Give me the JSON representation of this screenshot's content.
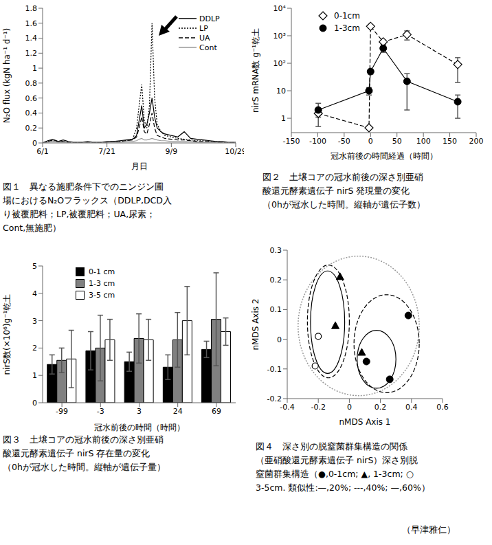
{
  "chart_data": [
    {
      "type": "line",
      "title": [
        "図１　異なる施肥条件下でのニンジン圃",
        "場におけるN₂Oフラックス（DDLP,DCD入",
        "り被覆肥料；LP,被覆肥料；UA,尿素；",
        "Cont,無施肥）"
      ],
      "xlabel": "月日",
      "ylabel": "N₂O flux (kgN ha⁻¹ d⁻¹)",
      "x": [
        0,
        4,
        8,
        12,
        16,
        20,
        25,
        30,
        35,
        40,
        45,
        50,
        55,
        60,
        65,
        70,
        73,
        75,
        77,
        79,
        81,
        83,
        85,
        87,
        89,
        92,
        95,
        100,
        105,
        110,
        115,
        120,
        125,
        130,
        135,
        140,
        145,
        150
      ],
      "xlim": [
        0,
        150
      ],
      "xticks": [
        {
          "value": 0,
          "label": "6/1"
        },
        {
          "value": 50,
          "label": "7/21"
        },
        {
          "value": 100,
          "label": "9/9"
        },
        {
          "value": 150,
          "label": "10/29"
        }
      ],
      "ylim": [
        0,
        1.8
      ],
      "yticks": [
        0,
        0.2,
        0.4,
        0.6,
        0.8,
        1,
        1.2,
        1.4,
        1.6,
        1.8
      ],
      "legend": "upper right",
      "series": [
        {
          "name": "DDLP",
          "color": "#000000",
          "line_style": "solid",
          "values": [
            0,
            0.03,
            0.05,
            0.02,
            0.04,
            0.02,
            0.01,
            0.01,
            0.02,
            0.01,
            0.01,
            0.02,
            0.02,
            0.03,
            0.04,
            0.05,
            0.1,
            0.3,
            0.5,
            0.2,
            0.25,
            0.4,
            0.6,
            0.35,
            0.2,
            0.15,
            0.12,
            0.1,
            0.08,
            0.15,
            0.06,
            0.05,
            0.04,
            0.03,
            0.02,
            0.02,
            0.01,
            0.01
          ]
        },
        {
          "name": "LP",
          "color": "#000000",
          "line_style": "dotted",
          "values": [
            0,
            0.02,
            0.03,
            0.02,
            0.02,
            0.01,
            0.01,
            0.01,
            0.01,
            0.01,
            0.01,
            0.01,
            0.02,
            0.02,
            0.03,
            0.05,
            0.2,
            0.5,
            0.78,
            0.3,
            0.2,
            0.5,
            1.6,
            0.6,
            0.25,
            0.15,
            0.1,
            0.08,
            0.06,
            0.05,
            0.04,
            0.03,
            0.03,
            0.02,
            0.02,
            0.01,
            0.01,
            0.01
          ]
        },
        {
          "name": "UA",
          "color": "#000000",
          "line_style": "dashed",
          "values": [
            0,
            0.02,
            0.04,
            0.02,
            0.02,
            0.01,
            0.01,
            0.01,
            0.01,
            0.01,
            0.01,
            0.01,
            0.02,
            0.02,
            0.03,
            0.04,
            0.08,
            0.2,
            0.35,
            0.15,
            0.12,
            0.25,
            0.4,
            0.2,
            0.1,
            0.08,
            0.06,
            0.05,
            0.04,
            0.04,
            0.03,
            0.02,
            0.02,
            0.02,
            0.01,
            0.01,
            0.01,
            0.01
          ]
        },
        {
          "name": "Cont",
          "color": "#999999",
          "line_style": "solid",
          "values": [
            0,
            0.01,
            0.02,
            0.01,
            0.01,
            0.01,
            0.01,
            0.01,
            0.01,
            0.01,
            0.01,
            0.01,
            0.01,
            0.01,
            0.02,
            0.02,
            0.03,
            0.05,
            0.06,
            0.04,
            0.04,
            0.05,
            0.06,
            0.05,
            0.04,
            0.03,
            0.03,
            0.02,
            0.02,
            0.02,
            0.02,
            0.01,
            0.01,
            0.01,
            0.01,
            0.01,
            0.01,
            0.01
          ]
        }
      ]
    },
    {
      "type": "line",
      "title": [
        "図２　土壌コアの冠水前後の深さ別亜硝",
        "酸還元酵素遺伝子 nirS 発現量の変化",
        "（0hが冠水した時間。縦軸が遺伝子数）"
      ],
      "xlabel": "冠水前後の時間経過（時間）",
      "ylabel": "nirS mRNA数 g⁻¹乾土",
      "log": "y",
      "x": [
        -99,
        -3,
        0,
        24,
        69,
        165
      ],
      "xlim": [
        -150,
        200
      ],
      "xticks": [
        -150,
        -100,
        -50,
        0,
        50,
        100,
        150,
        200
      ],
      "ylim": [
        0.3,
        10000
      ],
      "yticks": [
        1,
        10,
        {
          "value": 100,
          "label": "10²"
        },
        {
          "value": 1000,
          "label": "10³"
        },
        {
          "value": 10000,
          "label": "10⁴"
        }
      ],
      "legend": "upper left",
      "series": [
        {
          "name": "0-1cm",
          "color": "#000000",
          "marker": "diamond_open",
          "line_style": "dashed",
          "values": [
            1.5,
            0.45,
            2200,
            600,
            1100,
            90
          ],
          "errors": [
            0.4,
            0.05,
            300,
            100,
            400,
            70
          ]
        },
        {
          "name": "1-3cm",
          "color": "#000000",
          "marker": "circle",
          "line_style": "solid",
          "values": [
            2,
            10,
            50,
            350,
            22,
            4
          ],
          "errors": [
            1.5,
            3,
            10,
            100,
            20,
            3
          ]
        }
      ]
    },
    {
      "type": "bar",
      "title": [
        "図３　土壌コアの冠水前後の深さ別亜硝",
        "酸還元酵素遺伝子 nirS 存在量の変化",
        "（0hが冠水した時間。縦軸が遺伝子量）"
      ],
      "xlabel": "冠水前後の時間（時間）",
      "ylabel": "nirS数(×10⁶)g⁻¹乾土",
      "categories": [
        "-99",
        "-3",
        "3",
        "24",
        "69"
      ],
      "ylim": [
        0,
        5
      ],
      "yticks": [
        0,
        1,
        2,
        3,
        4,
        5
      ],
      "legend": "upper left",
      "series": [
        {
          "name": "0-1 cm",
          "color": "#000000",
          "values": [
            1.4,
            1.9,
            1.5,
            1.3,
            1.95
          ],
          "errors": [
            0.35,
            0.7,
            0.35,
            0.45,
            0.3
          ]
        },
        {
          "name": "1-3 cm",
          "color": "#808080",
          "values": [
            1.55,
            2.0,
            2.35,
            2.3,
            3.05
          ],
          "errors": [
            0.45,
            1.2,
            0.9,
            1.0,
            1.7
          ]
        },
        {
          "name": "3-5 cm",
          "color": "#ffffff",
          "values": [
            1.6,
            2.3,
            2.3,
            3.0,
            2.6
          ],
          "errors": [
            1.05,
            0.75,
            0.75,
            1.25,
            0.5
          ]
        }
      ]
    },
    {
      "type": "scatter",
      "title": [
        "図４　深さ別の脱窒菌群集構造の関係",
        "（亜硝酸還元酵素遺伝子 nirS）深さ別脱",
        "窒菌群集構造（●,0-1cm; ▲, 1-3cm; ○",
        "3-5cm. 類似性:—,20%; ---,40%; —,60%）"
      ],
      "xlabel": "nMDS Axis 1",
      "ylabel": "nMDS Axis 2",
      "xlim": [
        -0.4,
        0.6
      ],
      "xticks": [
        -0.4,
        -0.2,
        0,
        0.2,
        0.4,
        0.6
      ],
      "ylim": [
        -0.2,
        0.3
      ],
      "yticks": [
        -0.2,
        -0.1,
        0,
        0.1,
        0.2,
        0.3
      ],
      "series": [
        {
          "color": "#000000",
          "marker": "circle",
          "x": [
            0.38,
            0.11,
            0.26
          ],
          "values": [
            0.08,
            -0.075,
            -0.135
          ]
        },
        {
          "color": "#000000",
          "marker": "triangle",
          "x": [
            -0.06,
            -0.09,
            0.08
          ],
          "values": [
            0.21,
            0.045,
            -0.045
          ]
        },
        {
          "color": "#000000",
          "marker": "circle_open",
          "x": [
            -0.2,
            -0.22
          ],
          "values": [
            0.01,
            -0.09
          ]
        }
      ],
      "groups": [
        {
          "line_style": "dotted",
          "color": "#999999",
          "xrange": [
            -0.33,
            0.45
          ],
          "yrange": [
            -0.19,
            0.28
          ]
        },
        {
          "line_style": "dashed",
          "color": "#000000",
          "xrange": [
            -0.27,
            0.0
          ],
          "yrange": [
            -0.13,
            0.25
          ]
        },
        {
          "line_style": "solid",
          "color": "#000000",
          "xrange": [
            -0.25,
            -0.03
          ],
          "yrange": [
            -0.115,
            0.23
          ]
        },
        {
          "line_style": "dashed",
          "color": "#000000",
          "xrange": [
            0.03,
            0.45
          ],
          "yrange": [
            -0.18,
            0.15
          ]
        },
        {
          "line_style": "solid",
          "color": "#000000",
          "xrange": [
            0.05,
            0.3
          ],
          "yrange": [
            -0.165,
            0.03
          ]
        }
      ]
    }
  ],
  "author": "（早津雅仁）"
}
